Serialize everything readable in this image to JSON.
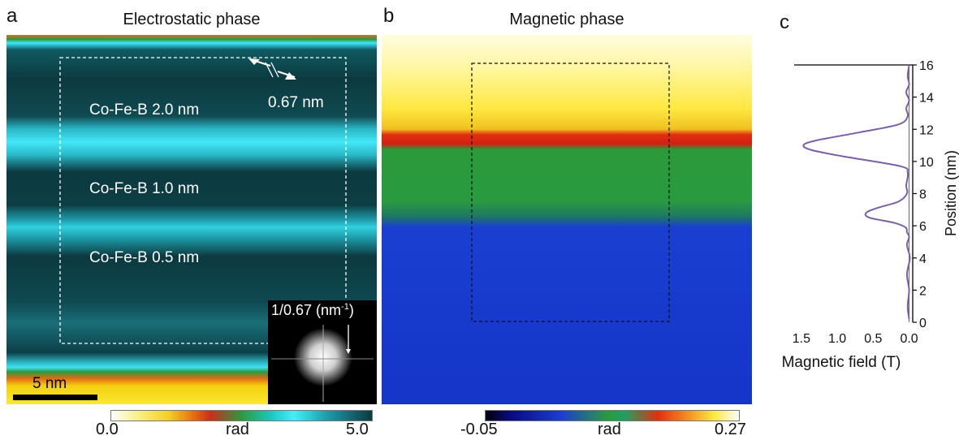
{
  "panel_a": {
    "letter": "a",
    "title": "Electrostatic phase",
    "layers": [
      "Co-Fe-B 2.0 nm",
      "Co-Fe-B 1.0 nm",
      "Co-Fe-B 0.5 nm"
    ],
    "lattice_label": "0.67 nm",
    "fft_label_main": "1/0.67 (nm",
    "fft_label_sup": "-1",
    "fft_label_close": ")",
    "scalebar_label": "5 nm",
    "colorbar": {
      "min": "0.0",
      "unit": "rad",
      "max": "5.0"
    }
  },
  "panel_b": {
    "letter": "b",
    "title": "Magnetic phase",
    "colorbar": {
      "min": "-0.05",
      "unit": "rad",
      "max": "0.27"
    }
  },
  "panel_c": {
    "letter": "c",
    "xlabel": "Magnetic field (T)",
    "ylabel": "Position (nm)",
    "line_color": "#7a5fa8"
  },
  "chart_data": {
    "type": "line",
    "title": "",
    "xlabel": "Magnetic field (T)",
    "ylabel": "Position (nm)",
    "x_ticks": [
      "1.5",
      "1.0",
      "0.5",
      "0.0"
    ],
    "y_ticks": [
      "0",
      "2",
      "4",
      "6",
      "8",
      "10",
      "12",
      "14",
      "16"
    ],
    "xlim": [
      1.6,
      -0.05
    ],
    "ylim": [
      0,
      16
    ],
    "x_reversed": true,
    "series": [
      {
        "field_T": [
          0.0,
          0.02,
          0.0,
          0.03,
          -0.01,
          0.03,
          0.0,
          0.03,
          0.05,
          0.22,
          0.55,
          0.6,
          0.45,
          0.15,
          0.03,
          0.04,
          0.02,
          0.12,
          0.9,
          1.35,
          1.47,
          1.3,
          0.7,
          0.15,
          0.02,
          0.04,
          0.0,
          0.04,
          0.0,
          0.02,
          0.0
        ],
        "position_nm": [
          0.2,
          1.0,
          2.0,
          3.0,
          4.0,
          4.8,
          5.3,
          5.6,
          5.9,
          6.2,
          6.5,
          6.8,
          7.1,
          7.5,
          8.0,
          8.5,
          9.3,
          9.7,
          10.3,
          10.7,
          11.0,
          11.3,
          11.8,
          12.3,
          12.8,
          13.3,
          13.8,
          14.3,
          14.8,
          15.3,
          16.0
        ]
      }
    ]
  }
}
